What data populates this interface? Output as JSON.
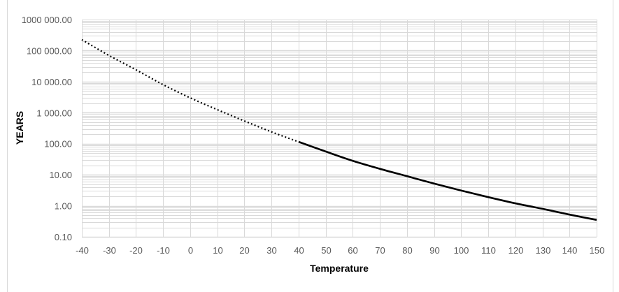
{
  "chart_data": {
    "type": "line",
    "title": "",
    "xlabel": "Temperature",
    "ylabel": "YEARS",
    "xlim": [
      -40,
      150
    ],
    "ylim": [
      0.1,
      1000000
    ],
    "y_scale": "log",
    "grid": true,
    "x_ticks": [
      "-40",
      "-30",
      "-20",
      "-10",
      "0",
      "10",
      "20",
      "30",
      "40",
      "50",
      "60",
      "70",
      "80",
      "90",
      "100",
      "110",
      "120",
      "130",
      "140",
      "150"
    ],
    "y_ticks": [
      "1000 000.00",
      "100 000.00",
      "10 000.00",
      "1 000.00",
      "100.00",
      "10.00",
      "1.00",
      "0.10"
    ],
    "x": [
      -40,
      -30,
      -20,
      -10,
      0,
      10,
      20,
      30,
      40,
      50,
      60,
      70,
      80,
      90,
      100,
      110,
      120,
      130,
      140,
      150
    ],
    "y": [
      225000,
      70000,
      24000,
      8000,
      3000,
      1250,
      540,
      240,
      115,
      56,
      28,
      15.5,
      9,
      5.2,
      3.1,
      1.9,
      1.2,
      0.8,
      0.52,
      0.35
    ],
    "segments": [
      {
        "style": "dotted",
        "x_range": [
          -40,
          40
        ]
      },
      {
        "style": "solid",
        "x_range": [
          40,
          150
        ]
      }
    ],
    "colors": {
      "line": "#000000",
      "grid": "#d9d9d9",
      "tick_text": "#595959"
    }
  }
}
